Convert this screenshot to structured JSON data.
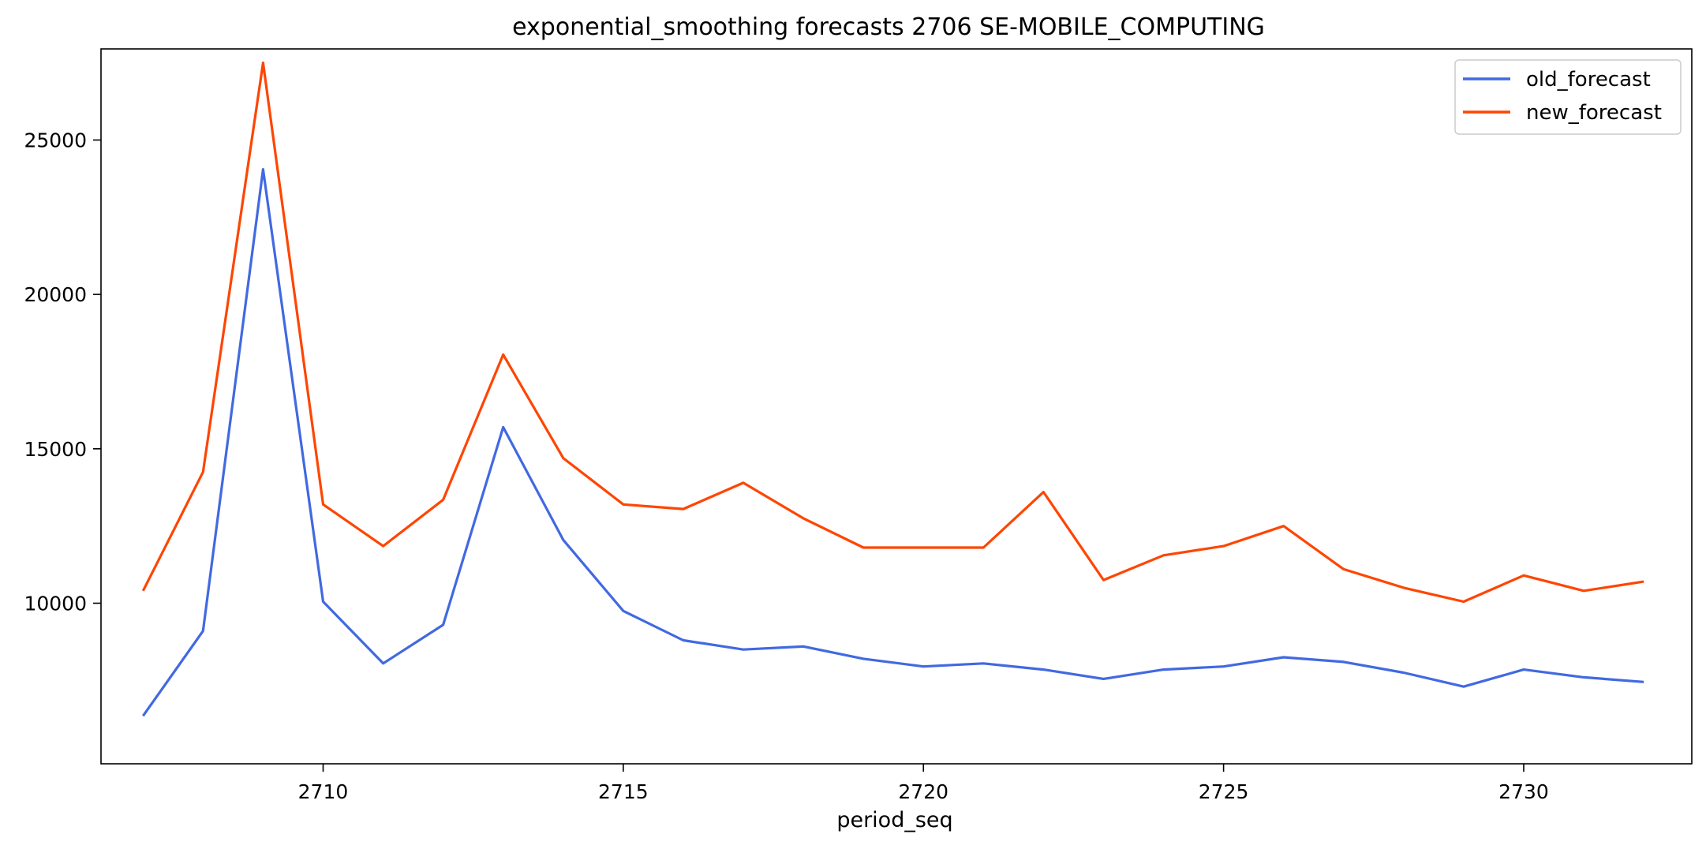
{
  "chart_data": {
    "type": "line",
    "title": "exponential_smoothing forecasts 2706 SE-MOBILE_COMPUTING",
    "xlabel": "period_seq",
    "ylabel": "",
    "xlim": [
      2706.3,
      2732.8
    ],
    "ylim": [
      4800,
      27950
    ],
    "x_ticks": [
      2710,
      2715,
      2720,
      2725,
      2730
    ],
    "y_ticks": [
      10000,
      15000,
      20000,
      25000
    ],
    "grid": false,
    "legend_position": "top-right",
    "x": [
      2707,
      2708,
      2709,
      2710,
      2711,
      2712,
      2713,
      2714,
      2715,
      2716,
      2717,
      2718,
      2719,
      2720,
      2721,
      2722,
      2723,
      2724,
      2725,
      2726,
      2727,
      2728,
      2729,
      2730,
      2731,
      2732
    ],
    "series": [
      {
        "name": "old_forecast",
        "color": "#4169e1",
        "values": [
          6350,
          9100,
          24050,
          10050,
          8050,
          9300,
          15700,
          12050,
          9750,
          8800,
          8500,
          8600,
          8200,
          7950,
          8050,
          7850,
          7550,
          7850,
          7950,
          8250,
          8100,
          7750,
          7300,
          7850,
          7600,
          7450
        ]
      },
      {
        "name": "new_forecast",
        "color": "#ff4500",
        "values": [
          10400,
          14250,
          27500,
          13200,
          11850,
          13350,
          18050,
          14700,
          13200,
          13050,
          13900,
          12750,
          11800,
          11800,
          11800,
          13600,
          10750,
          11550,
          11850,
          12500,
          11100,
          10500,
          10050,
          10900,
          10400,
          10700
        ]
      }
    ]
  }
}
